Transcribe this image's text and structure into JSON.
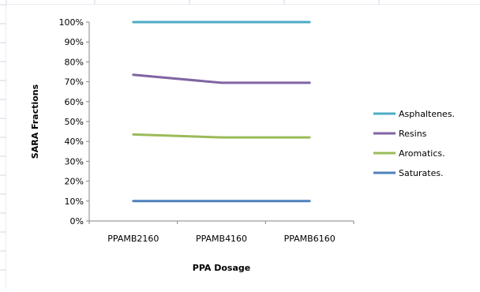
{
  "chart_data": {
    "type": "line",
    "title": "",
    "xlabel": "PPA Dosage",
    "ylabel": "SARA Fractions",
    "categories": [
      "PPAMB2160",
      "PPAMB4160",
      "PPAMB6160"
    ],
    "ylim": [
      0,
      100
    ],
    "y_ticks": [
      "0%",
      "10%",
      "20%",
      "30%",
      "40%",
      "50%",
      "60%",
      "70%",
      "80%",
      "90%",
      "100%"
    ],
    "grid": false,
    "legend_position": "right",
    "series": [
      {
        "name": "Asphaltenes.",
        "values": [
          100,
          100,
          100
        ],
        "color": "#4bacc6"
      },
      {
        "name": "Resins",
        "values": [
          73.5,
          69.5,
          69.5
        ],
        "color": "#8064a2"
      },
      {
        "name": "Aromatics.",
        "values": [
          43.5,
          42,
          42
        ],
        "color": "#9bbb59"
      },
      {
        "name": "Saturates.",
        "values": [
          10,
          10,
          10
        ],
        "color": "#4f81bd"
      }
    ]
  }
}
